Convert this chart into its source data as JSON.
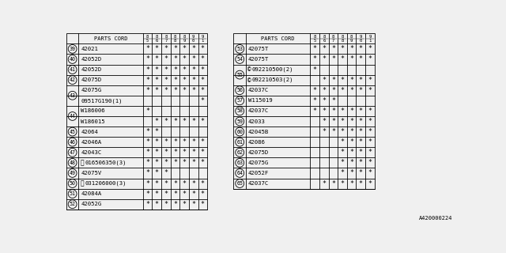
{
  "ref_code": "A420000224",
  "col_headers": [
    "8\n5",
    "8\n6",
    "8\n7",
    "8\n8",
    "8\n9",
    "9\n0",
    "9\n1"
  ],
  "bg_color": "#f0f0f0",
  "table_color": "#000000",
  "left_table": {
    "rows": [
      {
        "num": "39",
        "num_b": false,
        "part": "42021",
        "prefix": "",
        "marks": [
          1,
          1,
          1,
          1,
          1,
          1,
          1
        ]
      },
      {
        "num": "40",
        "num_b": false,
        "part": "42052D",
        "prefix": "",
        "marks": [
          1,
          1,
          1,
          1,
          1,
          1,
          1
        ]
      },
      {
        "num": "41",
        "num_b": false,
        "part": "42052D",
        "prefix": "",
        "marks": [
          1,
          1,
          1,
          1,
          1,
          1,
          1
        ]
      },
      {
        "num": "42",
        "num_b": false,
        "part": "42075D",
        "prefix": "",
        "marks": [
          1,
          1,
          1,
          1,
          1,
          1,
          1
        ]
      },
      {
        "num": "43",
        "num_b": false,
        "part": "42075G",
        "prefix": "",
        "marks": [
          1,
          1,
          1,
          1,
          1,
          1,
          1
        ]
      },
      {
        "num": "43",
        "num_b": true,
        "part": "09517G190(1)",
        "prefix": "",
        "marks": [
          0,
          0,
          0,
          0,
          0,
          0,
          1
        ]
      },
      {
        "num": "44",
        "num_b": false,
        "part": "W186006",
        "prefix": "",
        "marks": [
          1,
          0,
          0,
          0,
          0,
          0,
          0
        ]
      },
      {
        "num": "44",
        "num_b": true,
        "part": "W186015",
        "prefix": "",
        "marks": [
          0,
          1,
          1,
          1,
          1,
          1,
          1
        ]
      },
      {
        "num": "45",
        "num_b": false,
        "part": "42064",
        "prefix": "",
        "marks": [
          1,
          1,
          0,
          0,
          0,
          0,
          0
        ]
      },
      {
        "num": "46",
        "num_b": false,
        "part": "42046A",
        "prefix": "",
        "marks": [
          1,
          1,
          1,
          1,
          1,
          1,
          1
        ]
      },
      {
        "num": "47",
        "num_b": false,
        "part": "42043C",
        "prefix": "",
        "marks": [
          1,
          1,
          1,
          1,
          1,
          1,
          1
        ]
      },
      {
        "num": "48",
        "num_b": false,
        "part": "016506350(3)",
        "prefix": "B",
        "marks": [
          1,
          1,
          1,
          1,
          1,
          1,
          1
        ]
      },
      {
        "num": "49",
        "num_b": false,
        "part": "42075V",
        "prefix": "",
        "marks": [
          1,
          1,
          1,
          0,
          0,
          0,
          0
        ]
      },
      {
        "num": "50",
        "num_b": false,
        "part": "031206000(3)",
        "prefix": "W",
        "marks": [
          1,
          1,
          1,
          1,
          1,
          1,
          1
        ]
      },
      {
        "num": "51",
        "num_b": false,
        "part": "42084A",
        "prefix": "",
        "marks": [
          1,
          1,
          1,
          1,
          1,
          1,
          1
        ]
      },
      {
        "num": "52",
        "num_b": false,
        "part": "42052G",
        "prefix": "",
        "marks": [
          1,
          1,
          1,
          1,
          1,
          1,
          1
        ]
      }
    ]
  },
  "right_table": {
    "rows": [
      {
        "num": "53",
        "num_b": false,
        "part": "42075T",
        "prefix": "",
        "marks": [
          1,
          1,
          1,
          1,
          1,
          1,
          1
        ]
      },
      {
        "num": "54",
        "num_b": false,
        "part": "42075T",
        "prefix": "",
        "marks": [
          1,
          1,
          1,
          1,
          1,
          1,
          1
        ]
      },
      {
        "num": "55",
        "num_b": false,
        "part": "092210500(2)",
        "prefix": "C",
        "marks": [
          1,
          0,
          0,
          0,
          0,
          0,
          0
        ]
      },
      {
        "num": "55",
        "num_b": true,
        "part": "092210503(2)",
        "prefix": "C",
        "marks": [
          0,
          1,
          1,
          1,
          1,
          1,
          1
        ]
      },
      {
        "num": "56",
        "num_b": false,
        "part": "42037C",
        "prefix": "",
        "marks": [
          1,
          1,
          1,
          1,
          1,
          1,
          1
        ]
      },
      {
        "num": "57",
        "num_b": false,
        "part": "W115019",
        "prefix": "",
        "marks": [
          1,
          1,
          1,
          0,
          0,
          0,
          0
        ]
      },
      {
        "num": "58",
        "num_b": false,
        "part": "42037C",
        "prefix": "",
        "marks": [
          1,
          1,
          1,
          1,
          1,
          1,
          1
        ]
      },
      {
        "num": "59",
        "num_b": false,
        "part": "42033",
        "prefix": "",
        "marks": [
          0,
          1,
          1,
          1,
          1,
          1,
          1
        ]
      },
      {
        "num": "60",
        "num_b": false,
        "part": "42045B",
        "prefix": "",
        "marks": [
          0,
          1,
          1,
          1,
          1,
          1,
          1
        ]
      },
      {
        "num": "61",
        "num_b": false,
        "part": "42086",
        "prefix": "",
        "marks": [
          0,
          0,
          0,
          1,
          1,
          1,
          1
        ]
      },
      {
        "num": "62",
        "num_b": false,
        "part": "42075D",
        "prefix": "",
        "marks": [
          0,
          0,
          0,
          1,
          1,
          1,
          1
        ]
      },
      {
        "num": "63",
        "num_b": false,
        "part": "42075G",
        "prefix": "",
        "marks": [
          0,
          0,
          0,
          1,
          1,
          1,
          1
        ]
      },
      {
        "num": "64",
        "num_b": false,
        "part": "42052F",
        "prefix": "",
        "marks": [
          0,
          0,
          0,
          1,
          1,
          1,
          1
        ]
      },
      {
        "num": "65",
        "num_b": false,
        "part": "42037C",
        "prefix": "",
        "marks": [
          0,
          1,
          1,
          1,
          1,
          1,
          1
        ]
      }
    ]
  }
}
